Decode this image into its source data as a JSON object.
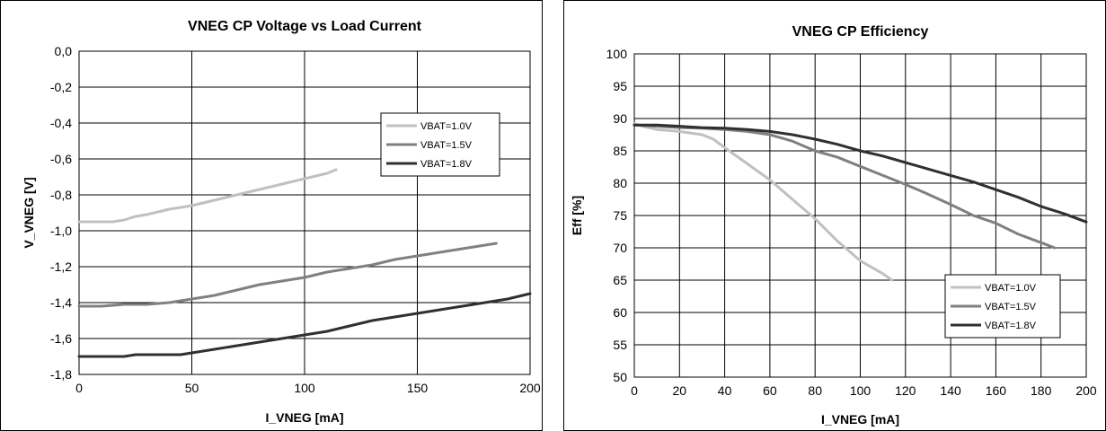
{
  "chart_data": [
    {
      "type": "line",
      "title": "VNEG CP Voltage vs Load Current",
      "xlabel": "I_VNEG [mA]",
      "ylabel": "V_VNEG [V]",
      "xlim": [
        0,
        200
      ],
      "ylim": [
        -1.8,
        0
      ],
      "xticks": [
        0,
        50,
        100,
        150,
        200
      ],
      "yticks": [
        0,
        -0.2,
        -0.4,
        -0.6,
        -0.8,
        -1.0,
        -1.2,
        -1.4,
        -1.6,
        -1.8
      ],
      "xtick_labels": [
        "0",
        "50",
        "100",
        "150",
        "200"
      ],
      "ytick_labels": [
        "0,0",
        "-0,2",
        "-0,4",
        "-0,6",
        "-0,8",
        "-1,0",
        "-1,2",
        "-1,4",
        "-1,6",
        "-1,8"
      ],
      "grid": true,
      "legend_position": "top-right",
      "series": [
        {
          "name": "VBAT=1.0V",
          "color": "#c0c0c0",
          "x": [
            0,
            5,
            15,
            20,
            25,
            30,
            40,
            50,
            60,
            70,
            80,
            90,
            100,
            110,
            114
          ],
          "y": [
            -0.95,
            -0.95,
            -0.95,
            -0.94,
            -0.92,
            -0.91,
            -0.88,
            -0.86,
            -0.83,
            -0.8,
            -0.77,
            -0.74,
            -0.71,
            -0.68,
            -0.66
          ]
        },
        {
          "name": "VBAT=1.5V",
          "color": "#808080",
          "x": [
            0,
            10,
            20,
            30,
            40,
            50,
            60,
            70,
            80,
            90,
            100,
            110,
            120,
            130,
            140,
            150,
            160,
            170,
            180,
            185
          ],
          "y": [
            -1.42,
            -1.42,
            -1.41,
            -1.41,
            -1.4,
            -1.38,
            -1.36,
            -1.33,
            -1.3,
            -1.28,
            -1.26,
            -1.23,
            -1.21,
            -1.19,
            -1.16,
            -1.14,
            -1.12,
            -1.1,
            -1.08,
            -1.07
          ]
        },
        {
          "name": "VBAT=1.8V",
          "color": "#303030",
          "x": [
            0,
            10,
            20,
            25,
            30,
            40,
            45,
            50,
            60,
            70,
            80,
            90,
            100,
            110,
            120,
            130,
            140,
            150,
            160,
            170,
            180,
            190,
            200
          ],
          "y": [
            -1.7,
            -1.7,
            -1.7,
            -1.69,
            -1.69,
            -1.69,
            -1.69,
            -1.68,
            -1.66,
            -1.64,
            -1.62,
            -1.6,
            -1.58,
            -1.56,
            -1.53,
            -1.5,
            -1.48,
            -1.46,
            -1.44,
            -1.42,
            -1.4,
            -1.38,
            -1.35
          ]
        }
      ]
    },
    {
      "type": "line",
      "title": "VNEG CP Efficiency",
      "xlabel": "I_VNEG [mA]",
      "ylabel": "Eff [%]",
      "xlim": [
        0,
        200
      ],
      "ylim": [
        50,
        100
      ],
      "xticks": [
        0,
        20,
        40,
        60,
        80,
        100,
        120,
        140,
        160,
        180,
        200
      ],
      "yticks": [
        100,
        95,
        90,
        85,
        80,
        75,
        70,
        65,
        60,
        55,
        50
      ],
      "xtick_labels": [
        "0",
        "20",
        "40",
        "60",
        "80",
        "100",
        "120",
        "140",
        "160",
        "180",
        "200"
      ],
      "ytick_labels": [
        "100",
        "95",
        "90",
        "85",
        "80",
        "75",
        "70",
        "65",
        "60",
        "55",
        "50"
      ],
      "grid": true,
      "legend_position": "bottom-right",
      "series": [
        {
          "name": "VBAT=1.0V",
          "color": "#c0c0c0",
          "x": [
            0,
            5,
            10,
            20,
            30,
            35,
            40,
            50,
            60,
            70,
            80,
            90,
            100,
            110,
            114
          ],
          "y": [
            89.2,
            88.7,
            88.3,
            88,
            87.5,
            86.8,
            85.5,
            83,
            80.5,
            77.5,
            74.5,
            71,
            68,
            66,
            65
          ]
        },
        {
          "name": "VBAT=1.5V",
          "color": "#808080",
          "x": [
            0,
            10,
            20,
            30,
            40,
            50,
            60,
            70,
            80,
            90,
            100,
            110,
            120,
            130,
            140,
            150,
            160,
            170,
            180,
            186
          ],
          "y": [
            89,
            88.8,
            88.6,
            88.5,
            88.3,
            88,
            87.5,
            86.5,
            85,
            84,
            82.6,
            81.2,
            79.8,
            78.3,
            76.7,
            75,
            73.8,
            72.1,
            70.8,
            70
          ]
        },
        {
          "name": "VBAT=1.8V",
          "color": "#303030",
          "x": [
            0,
            10,
            20,
            30,
            40,
            50,
            60,
            70,
            80,
            90,
            100,
            110,
            120,
            130,
            140,
            150,
            160,
            170,
            180,
            190,
            200
          ],
          "y": [
            89,
            89,
            88.8,
            88.6,
            88.5,
            88.3,
            88,
            87.5,
            86.8,
            86,
            85,
            84.2,
            83.2,
            82.2,
            81.2,
            80.2,
            79,
            77.8,
            76.4,
            75.3,
            74
          ]
        }
      ]
    }
  ]
}
